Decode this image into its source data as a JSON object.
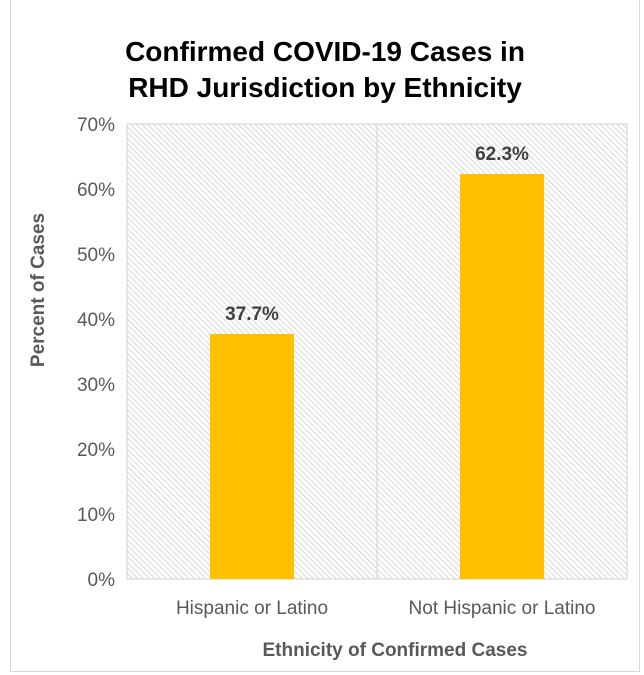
{
  "chart_data": {
    "type": "bar",
    "title_lines": [
      "Confirmed COVID-19 Cases in",
      "RHD Jurisdiction by Ethnicity"
    ],
    "title": "Confirmed COVID-19 Cases in RHD Jurisdiction by Ethnicity",
    "xlabel": "Ethnicity of Confirmed Cases",
    "ylabel": "Percent of Cases",
    "categories": [
      "Hispanic or Latino",
      "Not Hispanic or Latino"
    ],
    "values": [
      37.7,
      62.3
    ],
    "data_labels": [
      "37.7%",
      "62.3%"
    ],
    "ylim": [
      0,
      70
    ],
    "yticks": [
      0,
      10,
      20,
      30,
      40,
      50,
      60,
      70
    ],
    "ytick_labels": [
      "0%",
      "10%",
      "20%",
      "30%",
      "40%",
      "50%",
      "60%",
      "70%"
    ],
    "bar_color": "#FFC000",
    "plot_background": "diagonal hatch",
    "grid": false,
    "legend": "none"
  }
}
